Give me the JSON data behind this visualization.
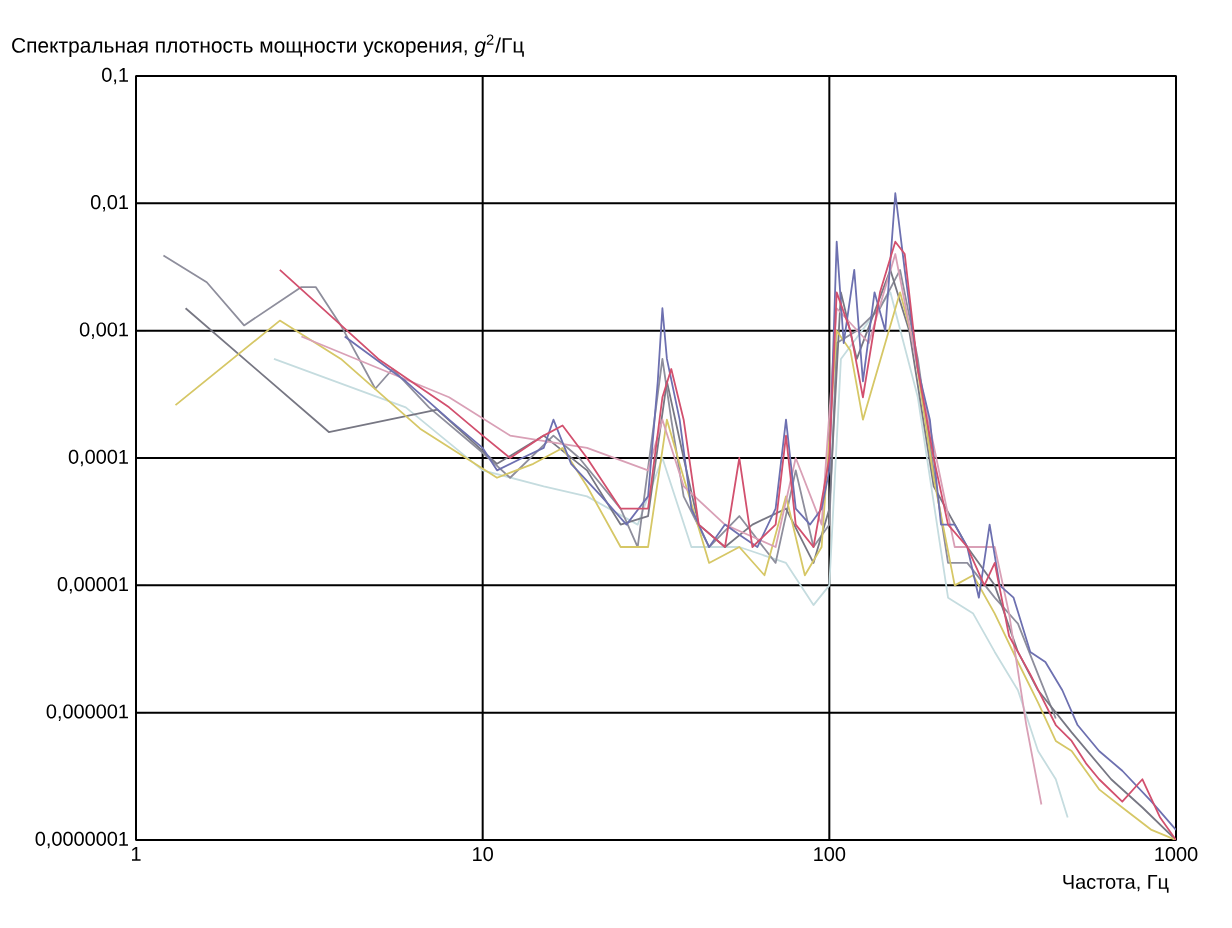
{
  "chart_data": {
    "type": "line",
    "ylabel": "Спектральная плотность мощности ускорения, *g*$^{2}$/Гц",
    "xlabel": "Частота, Гц",
    "log": "xy",
    "grid": true,
    "xlim": [
      1,
      1000
    ],
    "ylim": [
      1e-07,
      0.1
    ],
    "xticks": [
      1,
      10,
      100,
      1000
    ],
    "yticks": [
      {
        "value": 0.1,
        "label": "0,1"
      },
      {
        "value": 0.01,
        "label": "0,01"
      },
      {
        "value": 0.001,
        "label": "0,001"
      },
      {
        "value": 0.0001,
        "label": "0,0001"
      },
      {
        "value": 1e-05,
        "label": "0,00001"
      },
      {
        "value": 1e-06,
        "label": "0,000001"
      },
      {
        "value": 1e-07,
        "label": "0,0000001"
      }
    ],
    "series": [
      {
        "color": "#c5dcdf",
        "x": [
          2.5,
          6,
          10,
          15,
          20,
          28,
          33,
          40,
          55,
          75,
          90,
          100,
          108,
          150,
          180,
          220,
          260,
          300,
          350,
          400,
          450,
          487
        ],
        "values": [
          0.0006,
          0.00025,
          8e-05,
          6e-05,
          5e-05,
          3e-05,
          0.0001,
          2e-05,
          2e-05,
          1.5e-05,
          7e-06,
          1e-05,
          0.0006,
          0.002,
          0.0003,
          8e-06,
          6e-06,
          3e-06,
          1.5e-06,
          5e-07,
          3e-07,
          1.5e-07
        ]
      },
      {
        "color": "#8e8e9c",
        "x": [
          1.2,
          1.6,
          2.05,
          3,
          3.3,
          3.9,
          4.9,
          5.5,
          7,
          10,
          12,
          16,
          19,
          25,
          28,
          33,
          35,
          38,
          45,
          55,
          70,
          80,
          90,
          100,
          105,
          120,
          140,
          160,
          180,
          200,
          220,
          250,
          300,
          350,
          400,
          450
        ],
        "values": [
          0.0039,
          0.0024,
          0.0011,
          0.0022,
          0.0022,
          0.0011,
          0.00035,
          0.0005,
          0.00025,
          0.00011,
          7e-05,
          0.00015,
          0.0001,
          4e-05,
          2e-05,
          0.0006,
          0.0002,
          5e-05,
          2e-05,
          3.5e-05,
          1.5e-05,
          8e-05,
          2e-05,
          3e-05,
          0.0008,
          0.001,
          0.0015,
          0.003,
          0.0006,
          8e-05,
          1.5e-05,
          1.5e-05,
          8e-06,
          5e-06,
          2e-06,
          9e-07
        ]
      },
      {
        "color": "#777783",
        "x": [
          1.39,
          3.6,
          7.4,
          11,
          15,
          20,
          25,
          30,
          34,
          38,
          42,
          50,
          60,
          75,
          90,
          100,
          108,
          120,
          150,
          170,
          200,
          250,
          300,
          350,
          400,
          500,
          650,
          800,
          1000
        ],
        "values": [
          0.0015,
          0.00016,
          0.00024,
          9e-05,
          0.00015,
          8e-05,
          3e-05,
          3.5e-05,
          0.0004,
          0.0001,
          3e-05,
          2e-05,
          3e-05,
          4e-05,
          1.5e-05,
          4e-05,
          0.002,
          0.0006,
          0.003,
          0.001,
          6e-05,
          2e-05,
          1e-05,
          3e-06,
          1.5e-06,
          7e-07,
          3e-07,
          1.8e-07,
          1e-07
        ]
      },
      {
        "color": "#d6c766",
        "x": [
          1.3,
          2.6,
          3.9,
          6.6,
          11,
          14,
          17,
          20,
          25,
          30,
          34,
          38,
          45,
          55,
          65,
          75,
          85,
          95,
          105,
          115,
          125,
          145,
          160,
          175,
          200,
          230,
          260,
          300,
          350,
          400,
          450,
          500,
          600,
          700,
          850,
          1000
        ],
        "values": [
          0.00026,
          0.0012,
          0.0006,
          0.00017,
          7e-05,
          9e-05,
          0.00012,
          6e-05,
          2e-05,
          2e-05,
          0.0002,
          7e-05,
          1.5e-05,
          2e-05,
          1.2e-05,
          5e-05,
          1.2e-05,
          2e-05,
          0.001,
          0.0007,
          0.0002,
          0.0008,
          0.002,
          0.0008,
          7e-05,
          1e-05,
          1.2e-05,
          6e-06,
          2.5e-06,
          1.2e-06,
          6e-07,
          5e-07,
          2.5e-07,
          1.8e-07,
          1.2e-07,
          1e-07
        ]
      },
      {
        "color": "#d9a0b6",
        "x": [
          3,
          8,
          12,
          20,
          30,
          33,
          38,
          50,
          70,
          80,
          95,
          105,
          130,
          155,
          180,
          230,
          280,
          300,
          330,
          370,
          409
        ],
        "values": [
          0.0009,
          0.0003,
          0.00015,
          0.00012,
          8e-05,
          0.0002,
          6e-05,
          3e-05,
          2e-05,
          0.0001,
          3e-05,
          0.0015,
          0.0008,
          0.004,
          0.0005,
          2e-05,
          2e-05,
          2e-05,
          6e-06,
          8e-07,
          1.9e-07
        ]
      },
      {
        "color": "#6d70b0",
        "x": [
          4,
          6,
          8,
          10,
          11,
          13,
          15,
          16,
          18,
          22,
          26,
          30,
          32,
          33,
          34,
          37,
          40,
          45,
          50,
          55,
          62,
          70,
          75,
          80,
          88,
          95,
          100,
          105,
          110,
          118,
          125,
          135,
          145,
          155,
          165,
          180,
          195,
          210,
          230,
          250,
          270,
          290,
          310,
          340,
          380,
          420,
          470,
          520,
          600,
          700,
          850,
          1000
        ],
        "values": [
          0.0009,
          0.0004,
          0.0002,
          0.00012,
          8e-05,
          0.0001,
          0.00012,
          0.0002,
          9e-05,
          5e-05,
          3e-05,
          5e-05,
          0.0004,
          0.0015,
          0.0006,
          0.0002,
          4e-05,
          2e-05,
          3e-05,
          2.5e-05,
          2e-05,
          4e-05,
          0.0002,
          4e-05,
          3e-05,
          4e-05,
          8e-05,
          0.005,
          0.0008,
          0.003,
          0.0004,
          0.002,
          0.001,
          0.012,
          0.003,
          0.0005,
          0.0002,
          3e-05,
          3e-05,
          2e-05,
          8e-06,
          3e-05,
          1e-05,
          8e-06,
          3e-06,
          2.5e-06,
          1.5e-06,
          8e-07,
          5e-07,
          3.5e-07,
          2e-07,
          1.2e-07
        ]
      },
      {
        "color": "#d2506e",
        "x": [
          2.6,
          5,
          8,
          10,
          12,
          15,
          17,
          20,
          25,
          30,
          33,
          35,
          38,
          42,
          50,
          55,
          60,
          70,
          75,
          80,
          90,
          100,
          105,
          115,
          125,
          140,
          155,
          165,
          180,
          200,
          220,
          250,
          280,
          300,
          330,
          380,
          450,
          500,
          550,
          600,
          700,
          800,
          900,
          1000
        ],
        "values": [
          0.003,
          0.0006,
          0.00025,
          0.00015,
          0.0001,
          0.00015,
          0.00018,
          0.0001,
          4e-05,
          4e-05,
          0.0003,
          0.0005,
          0.0002,
          3e-05,
          2e-05,
          0.0001,
          2e-05,
          3e-05,
          0.00015,
          3e-05,
          2e-05,
          0.0001,
          0.002,
          0.001,
          0.0003,
          0.002,
          0.005,
          0.004,
          0.0005,
          0.0001,
          3e-05,
          2e-05,
          1e-05,
          1.5e-05,
          4e-06,
          2e-06,
          8e-07,
          6e-07,
          4e-07,
          3e-07,
          2e-07,
          3e-07,
          1.5e-07,
          1e-07
        ]
      }
    ]
  }
}
